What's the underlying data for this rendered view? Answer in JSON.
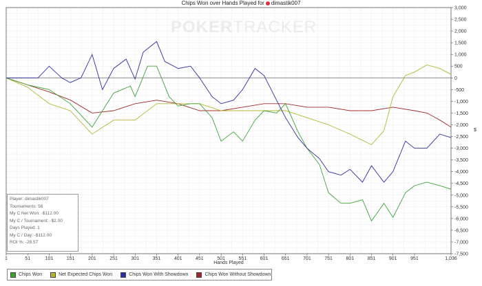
{
  "chart_data": {
    "type": "line",
    "title": "Chips Won over Hands Played for",
    "player": "dimastik007",
    "watermark": {
      "bold": "POKER",
      "light": "TRACKER"
    },
    "xlabel": "Hands Played",
    "ylabel": "$",
    "xlim": [
      1,
      1036
    ],
    "ylim": [
      -7500,
      3000
    ],
    "xticks": [
      1,
      51,
      101,
      151,
      201,
      251,
      301,
      351,
      401,
      451,
      501,
      551,
      601,
      651,
      701,
      751,
      801,
      851,
      901,
      951,
      1036
    ],
    "xtick_labels": [
      "1",
      "51",
      "101",
      "151",
      "201",
      "251",
      "301",
      "351",
      "401",
      "451",
      "501",
      "551",
      "601",
      "651",
      "701",
      "751",
      "801",
      "851",
      "901",
      "951",
      "1,036"
    ],
    "yticks": [
      3000,
      2500,
      2000,
      1500,
      1000,
      500,
      0,
      -500,
      -1000,
      -1500,
      -2000,
      -2500,
      -3000,
      -3500,
      -4000,
      -4500,
      -5000,
      -5500,
      -6000,
      -6500,
      -7000,
      -7500
    ],
    "ytick_labels": [
      "3,000",
      "2,500",
      "2,000",
      "1,500",
      "1,000",
      "500",
      "0",
      "-500",
      "-1,000",
      "-1,500",
      "-2,000",
      "-2,500",
      "-3,000",
      "-3,500",
      "-4,000",
      "-4,500",
      "-5,000",
      "-5,500",
      "-6,000",
      "-6,500",
      "-7,000",
      "-7,500"
    ],
    "grid": true,
    "legend_position": "bottom",
    "series": [
      {
        "name": "Chips Won",
        "color": "#3aa335",
        "x": [
          1,
          51,
          101,
          150,
          201,
          225,
          251,
          290,
          301,
          330,
          351,
          380,
          401,
          430,
          451,
          480,
          501,
          530,
          551,
          580,
          601,
          630,
          651,
          680,
          701,
          730,
          751,
          780,
          801,
          830,
          851,
          880,
          901,
          930,
          951,
          980,
          1010,
          1036
        ],
        "y": [
          0,
          -300,
          -500,
          -1100,
          -2100,
          -1400,
          -650,
          -350,
          -800,
          500,
          500,
          -800,
          -1200,
          -1100,
          -1100,
          -1700,
          -2700,
          -2300,
          -2700,
          -1800,
          -1400,
          -1500,
          -1100,
          -2300,
          -3000,
          -3700,
          -4900,
          -5350,
          -5350,
          -5200,
          -6100,
          -5350,
          -5950,
          -4900,
          -4600,
          -4450,
          -4600,
          -4750
        ]
      },
      {
        "name": "Net Expected Chips Won",
        "color": "#b5b532",
        "x": [
          1,
          51,
          101,
          150,
          201,
          251,
          301,
          351,
          401,
          451,
          501,
          551,
          601,
          651,
          701,
          751,
          801,
          851,
          880,
          901,
          930,
          951,
          980,
          1010,
          1036
        ],
        "y": [
          0,
          -400,
          -1100,
          -1400,
          -2400,
          -1800,
          -1800,
          -1100,
          -1100,
          -1100,
          -1400,
          -1400,
          -1400,
          -1400,
          -1700,
          -2000,
          -2400,
          -2850,
          -2250,
          -800,
          100,
          250,
          550,
          400,
          150
        ]
      },
      {
        "name": "Chips Won With Showdown",
        "color": "#2c2ca0",
        "x": [
          1,
          75,
          101,
          130,
          150,
          175,
          201,
          225,
          251,
          280,
          301,
          320,
          351,
          370,
          401,
          430,
          451,
          480,
          501,
          530,
          551,
          580,
          601,
          630,
          651,
          680,
          701,
          730,
          751,
          780,
          801,
          830,
          851,
          880,
          901,
          930,
          951,
          980,
          1010,
          1036
        ],
        "y": [
          0,
          0,
          500,
          0,
          -200,
          0,
          1000,
          -500,
          400,
          800,
          -50,
          1100,
          1550,
          700,
          400,
          500,
          0,
          -800,
          -1100,
          -950,
          -500,
          400,
          100,
          -950,
          -1700,
          -2550,
          -3000,
          -3450,
          -4000,
          -4150,
          -3900,
          -4450,
          -3750,
          -4450,
          -4000,
          -2700,
          -3000,
          -3000,
          -2400,
          -2550
        ]
      },
      {
        "name": "Chips Won Without Showdown",
        "color": "#a02828",
        "x": [
          1,
          51,
          101,
          151,
          201,
          251,
          301,
          351,
          401,
          451,
          501,
          551,
          601,
          651,
          701,
          751,
          801,
          851,
          901,
          951,
          980,
          1010,
          1036
        ],
        "y": [
          0,
          -300,
          -600,
          -950,
          -1500,
          -1400,
          -1100,
          -950,
          -1100,
          -1400,
          -1400,
          -1250,
          -1100,
          -1100,
          -1250,
          -1250,
          -1400,
          -1400,
          -1250,
          -1400,
          -1500,
          -1800,
          -2100
        ]
      }
    ]
  },
  "stats": [
    "Player: dimastik007",
    "Tournaments: 56",
    "My C Net Won: -$112.00",
    "My C / Tournament: -$2.00",
    "Days Played: 1",
    "My C / Day: -$112.00",
    "ROI %: -28.57"
  ]
}
